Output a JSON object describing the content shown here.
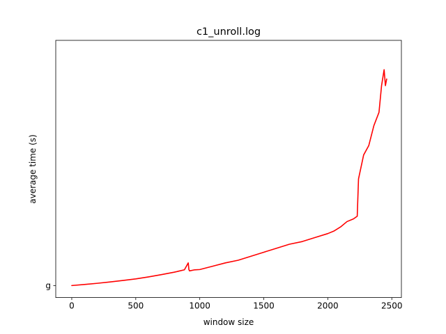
{
  "chart_data": {
    "type": "line",
    "title": "c1_unroll.log",
    "xlabel": "window size",
    "ylabel": "average time (s)",
    "xlim": [
      -125,
      2575
    ],
    "ylim": [
      -0.09,
      1.84
    ],
    "x_ticks": [
      0,
      500,
      1000,
      1500,
      2000,
      2500
    ],
    "x_tick_labels": [
      "0",
      "500",
      "1000",
      "1500",
      "2000",
      "2500"
    ],
    "y_ticks": [
      0
    ],
    "y_tick_labels": [
      "g"
    ],
    "grid": false,
    "series": [
      {
        "name": "c1_unroll.log",
        "color": "#ff0000",
        "x": [
          0,
          100,
          200,
          300,
          400,
          500,
          600,
          700,
          800,
          880,
          910,
          915,
          920,
          960,
          1000,
          1100,
          1200,
          1300,
          1400,
          1500,
          1600,
          1700,
          1800,
          1900,
          2000,
          2050,
          2100,
          2150,
          2200,
          2230,
          2240,
          2280,
          2320,
          2360,
          2400,
          2420,
          2440,
          2450,
          2460
        ],
        "values": [
          0,
          0.008,
          0.017,
          0.027,
          0.038,
          0.05,
          0.065,
          0.082,
          0.1,
          0.118,
          0.17,
          0.12,
          0.11,
          0.118,
          0.12,
          0.145,
          0.17,
          0.19,
          0.22,
          0.25,
          0.28,
          0.31,
          0.33,
          0.36,
          0.39,
          0.41,
          0.44,
          0.48,
          0.5,
          0.52,
          0.8,
          0.98,
          1.05,
          1.2,
          1.3,
          1.5,
          1.62,
          1.5,
          1.55
        ]
      }
    ]
  }
}
